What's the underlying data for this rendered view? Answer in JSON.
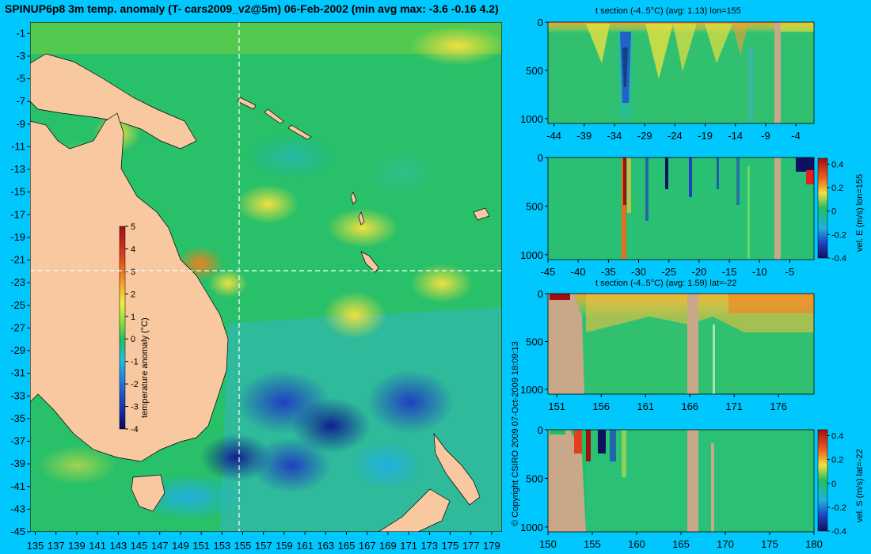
{
  "main_title": "SPINUP6p8 3m temp. anomaly (T- cars2009_v2@5m) 06-Feb-2002 (min avg max: -3.6 -0.16 4.2)",
  "copyright": "© Copyright CSIRO 2009   07-Oct-2009 18:09:13",
  "colors": {
    "background": "#00c8ff",
    "land": "#f8c8a0",
    "section_land": "#c8a888",
    "crosshair": "#ffffff"
  },
  "chart_data": [
    {
      "type": "heatmap",
      "id": "map",
      "title": "SPINUP6p8 3m temp. anomaly (T- cars2009_v2@5m) 06-Feb-2002 (min avg max: -3.6 -0.16 4.2)",
      "x_ticks": [
        "135",
        "137",
        "139",
        "141",
        "143",
        "145",
        "147",
        "149",
        "151",
        "153",
        "155",
        "157",
        "159",
        "161",
        "163",
        "165",
        "167",
        "169",
        "171",
        "173",
        "175",
        "177",
        "179"
      ],
      "y_ticks": [
        "-1",
        "-3",
        "-5",
        "-7",
        "-9",
        "-11",
        "-13",
        "-15",
        "-17",
        "-19",
        "-21",
        "-23",
        "-25",
        "-27",
        "-29",
        "-31",
        "-33",
        "-35",
        "-37",
        "-39",
        "-41",
        "-43",
        "-45"
      ],
      "xlim": [
        134.5,
        180
      ],
      "ylim": [
        -45,
        0
      ],
      "crosshair": {
        "lon": 155,
        "lat": -22
      },
      "colorbar": {
        "label": "temperature anomaly (°C)",
        "ticks": [
          "5",
          "4",
          "3",
          "2",
          "1",
          "0",
          "-1",
          "-2",
          "-3",
          "-4"
        ],
        "range": [
          -4,
          5
        ]
      }
    },
    {
      "type": "heatmap",
      "id": "section1",
      "title": "t section (-4..5°C) (avg: 1.13) lon=155",
      "x_ticks": [
        "-44",
        "-39",
        "-34",
        "-29",
        "-24",
        "-19",
        "-14",
        "-9",
        "-4"
      ],
      "y_ticks": [
        "0",
        "500",
        "1000"
      ],
      "xlim": [
        -45,
        -1
      ],
      "ylim": [
        1050,
        0
      ]
    },
    {
      "type": "heatmap",
      "id": "section2",
      "title": "",
      "x_ticks": [
        "-45",
        "-40",
        "-35",
        "-30",
        "-25",
        "-20",
        "-15",
        "-10",
        "-5"
      ],
      "y_ticks": [
        "0",
        "500",
        "1000"
      ],
      "xlim": [
        -45,
        -1
      ],
      "ylim": [
        1050,
        0
      ],
      "colorbar": {
        "label": "vel. E (m/s) lon=155",
        "ticks": [
          "0.4",
          "0.2",
          "0",
          "-0.2",
          "-0.4"
        ],
        "range": [
          -0.4,
          0.45
        ]
      }
    },
    {
      "type": "heatmap",
      "id": "section3",
      "title": "t section (-4..5°C) (avg: 1.59) lat=-22",
      "x_ticks": [
        "151",
        "156",
        "161",
        "166",
        "171",
        "176"
      ],
      "y_ticks": [
        "0",
        "500",
        "1000"
      ],
      "xlim": [
        150,
        180
      ],
      "ylim": [
        1050,
        0
      ]
    },
    {
      "type": "heatmap",
      "id": "section4",
      "title": "",
      "x_ticks": [
        "150",
        "155",
        "160",
        "165",
        "170",
        "175",
        "180"
      ],
      "y_ticks": [
        "0",
        "500",
        "1000"
      ],
      "xlim": [
        150,
        180
      ],
      "ylim": [
        1050,
        0
      ],
      "colorbar": {
        "label": "vel. S (m/s) lat=-22",
        "ticks": [
          "0.4",
          "0.2",
          "0",
          "-0.2",
          "-0.4"
        ],
        "range": [
          -0.4,
          0.45
        ]
      }
    }
  ]
}
